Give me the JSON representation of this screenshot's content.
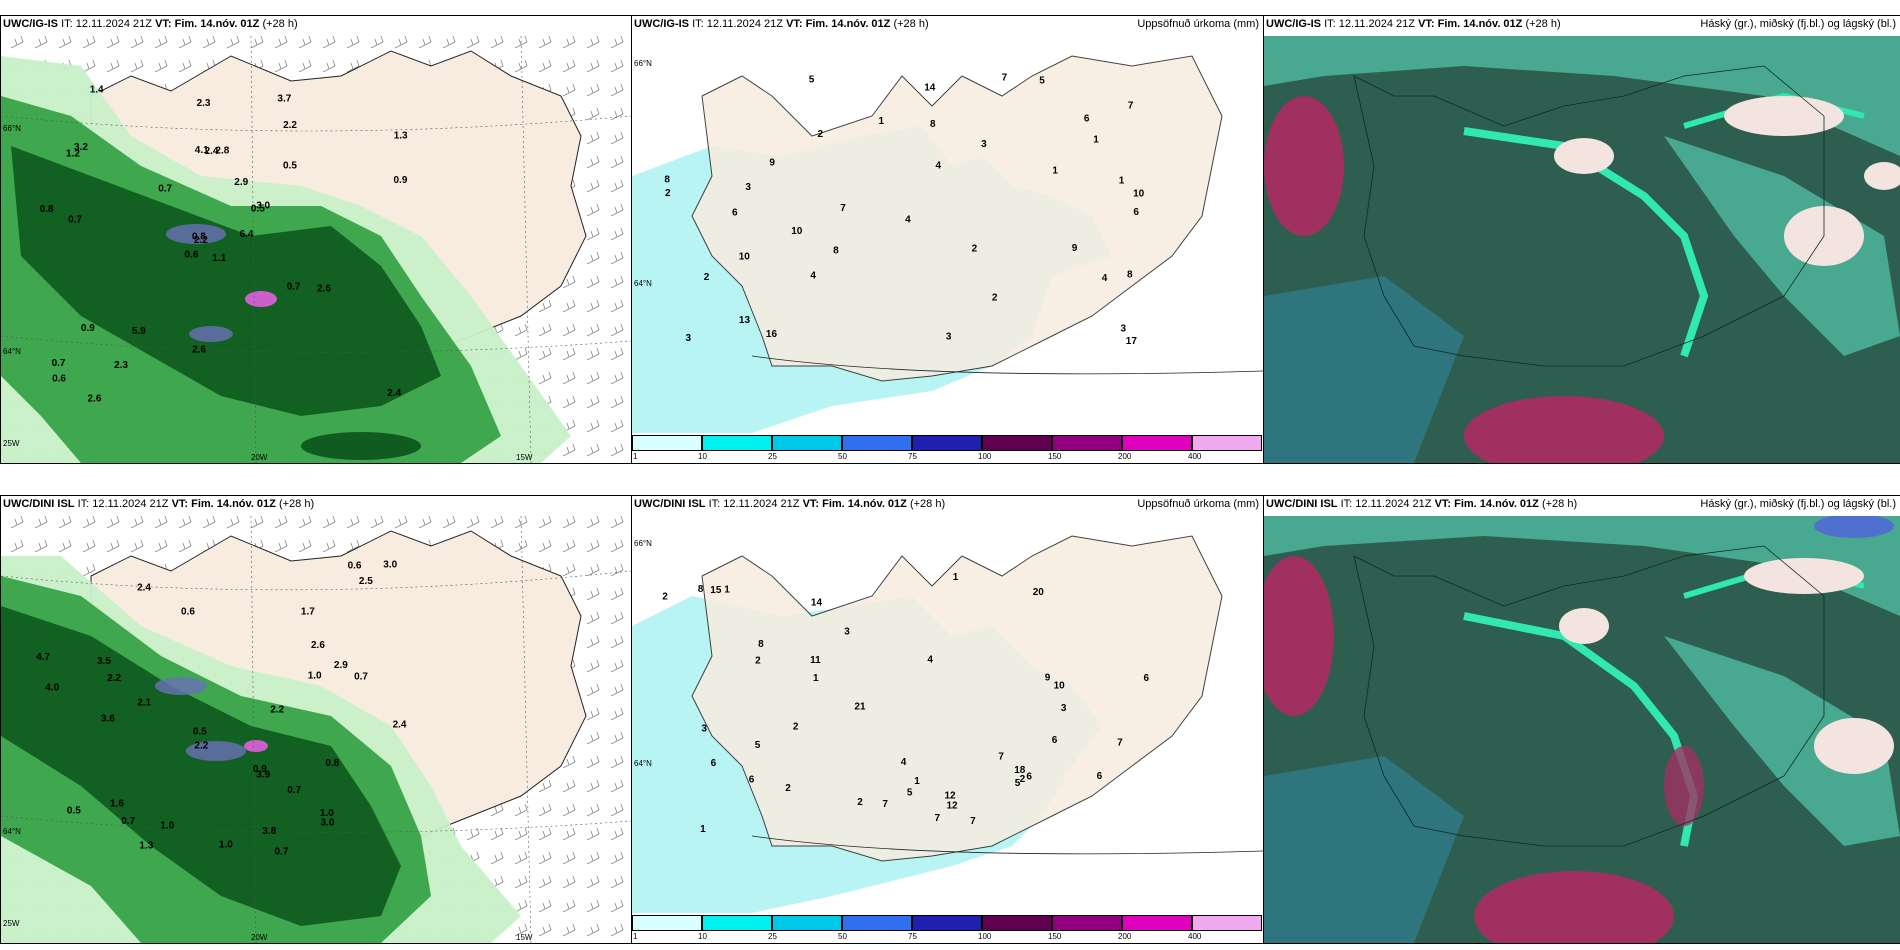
{
  "rows": [
    {
      "model": "UWC/IG-IS",
      "it_label": "IT:",
      "it_value": "12.11.2024 21Z",
      "vt_label": "VT:",
      "vt_value": "Fim. 14.nóv. 01Z",
      "lead": "(+28 h)",
      "labels_a": [
        "1.1",
        "1.2",
        "2.2",
        "0.7",
        "0.5",
        "5.9",
        "3.7",
        "2.8",
        "2.2",
        "6.4",
        "1.4",
        "2.4",
        "0.7",
        "1.3",
        "0.6",
        "0.5",
        "2.6",
        "4.1",
        "2.9",
        "0.9",
        "0.7",
        "0.6",
        "2.3",
        "2.4",
        "3.0",
        "2.6",
        "3.2",
        "2.3",
        "0.8",
        "0.7",
        "0.9",
        "0.8",
        "2.6"
      ],
      "labels_b": [
        "2",
        "1",
        "3",
        "10",
        "7",
        "8",
        "8",
        "7",
        "4",
        "6",
        "9",
        "9",
        "1",
        "4",
        "2",
        "4",
        "10",
        "8",
        "5",
        "1",
        "3",
        "8",
        "13",
        "10",
        "4",
        "5",
        "3",
        "2",
        "3",
        "7",
        "16",
        "17",
        "6",
        "14",
        "3",
        "2",
        "6",
        "2",
        "1"
      ]
    },
    {
      "model": "UWC/DINI ISL",
      "it_label": "IT:",
      "it_value": "12.11.2024 21Z",
      "vt_label": "VT:",
      "vt_value": "Fim. 14.nóv. 01Z",
      "lead": "(+28 h)",
      "labels_a": [
        "0.7",
        "2.4",
        "1.6",
        "3.5",
        "2.9",
        "3.8",
        "2.4",
        "2.1",
        "2.2",
        "0.7",
        "0.5",
        "4.7",
        "0.5",
        "0.9",
        "1.0",
        "0.6",
        "4.0",
        "2.5",
        "0.8",
        "0.7",
        "1.0",
        "3.9",
        "1.3",
        "3.0",
        "2.2",
        "2.6",
        "3.6",
        "2.2",
        "1.0",
        "0.6",
        "0.7",
        "3.0",
        "1.7",
        "1.0"
      ],
      "labels_b": [
        "2",
        "1",
        "4",
        "2",
        "6",
        "6",
        "5",
        "3",
        "9",
        "8",
        "5",
        "6",
        "7",
        "7",
        "20",
        "12",
        "18",
        "2",
        "7",
        "10",
        "1",
        "3",
        "2",
        "1",
        "12",
        "2",
        "1",
        "7",
        "14",
        "11",
        "8",
        "7",
        "6",
        "4",
        "5",
        "3",
        "15",
        "6",
        "21",
        "2",
        "1",
        "6"
      ]
    }
  ],
  "precip_title": "Uppsöfnuð úrkoma (mm)",
  "cloud_title": "Háský (gr.), miðský (fj.bl.) og lágský (bl.)",
  "colorbar": {
    "ticks": [
      "1",
      "10",
      "25",
      "50",
      "75",
      "100",
      "150",
      "200",
      "400"
    ],
    "colors": [
      "#d8ffff",
      "#00f0f0",
      "#00c8e8",
      "#3070f0",
      "#2020b0",
      "#600050",
      "#900080",
      "#e000c0",
      "#f0a8f0"
    ]
  },
  "graticule": {
    "lat_66": "66°N",
    "lat_64": "64°N",
    "lon_20w": "20W",
    "lon_15w": "15W",
    "lon_25w": "25W"
  },
  "colors": {
    "land": "#f8ece0",
    "sea": "#ffffff",
    "precip_light": "#c8f0c8",
    "precip_mid": "#30a040",
    "precip_dark": "#105c20",
    "cyan_light": "#b8f4f4",
    "cloud_dark": "#2e5e50",
    "cloud_teal": "#48a890",
    "cloud_mint": "#30e8b0",
    "cloud_red": "#a03060"
  }
}
